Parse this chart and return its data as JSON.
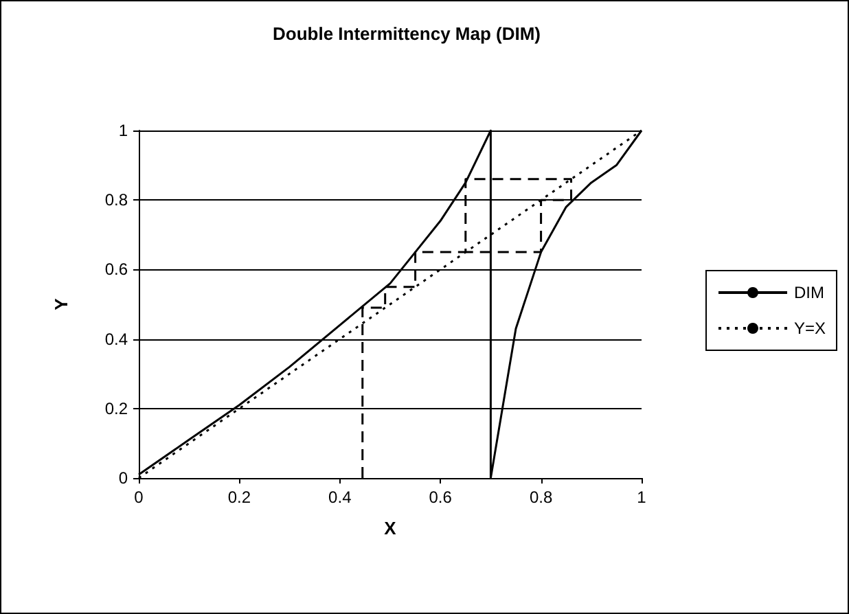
{
  "chart_data": {
    "type": "line",
    "title": "Double Intermittency Map (DIM)",
    "xlabel": "X",
    "ylabel": "Y",
    "xlim": [
      0,
      1
    ],
    "xticks": [
      0,
      0.2,
      0.4,
      0.6,
      0.8,
      1
    ],
    "ylim": [
      0,
      1
    ],
    "yticks": [
      0,
      0.2,
      0.4,
      0.6,
      0.8,
      1
    ],
    "grid": "y",
    "legend": "right",
    "marker": "none",
    "series": [
      {
        "name": "DIM",
        "color": "#000000",
        "line_style": "solid",
        "x": [
          0,
          0.1,
          0.2,
          0.3,
          0.4,
          0.5,
          0.55,
          0.6,
          0.65,
          0.7,
          0.7,
          0.75,
          0.8,
          0.85,
          0.9,
          0.95,
          1
        ],
        "values": [
          0.01,
          0.11,
          0.21,
          0.32,
          0.44,
          0.56,
          0.65,
          0.74,
          0.85,
          1,
          0,
          0.43,
          0.65,
          0.78,
          0.85,
          0.9,
          1
        ]
      },
      {
        "name": "Y=X",
        "color": "#000000",
        "line_style": "dotted",
        "x": [
          0,
          1
        ],
        "values": [
          0,
          1
        ]
      },
      {
        "color": "#000000",
        "line_style": "dashed",
        "x": [
          0.445,
          0.445,
          0.49,
          0.49,
          0.55,
          0.55,
          0.65,
          0.65,
          0.86,
          0.86,
          0.8,
          0.8,
          0.65
        ],
        "values": [
          0,
          0.49,
          0.49,
          0.55,
          0.55,
          0.65,
          0.65,
          0.86,
          0.86,
          0.8,
          0.8,
          0.65,
          0.65
        ]
      }
    ]
  }
}
